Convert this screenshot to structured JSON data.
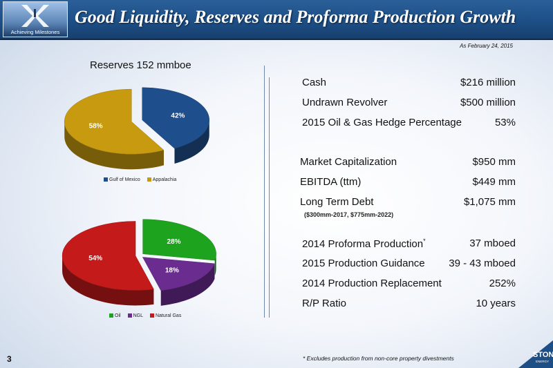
{
  "header": {
    "title": "Good Liquidity, Reserves and Proforma Production Growth",
    "logo_caption": "Achieving Milestones"
  },
  "as_of": "As February 24, 2015",
  "reserves_title": "Reserves  152 mmboe",
  "chart_data": [
    {
      "type": "pie",
      "labels": [
        "Gulf of Mexico",
        "Appalachia"
      ],
      "values": [
        42,
        58
      ],
      "value_labels": [
        "42%",
        "58%"
      ],
      "colors": [
        "#1f4e8c",
        "#c79a10"
      ],
      "legend": "bottom"
    },
    {
      "type": "pie",
      "labels": [
        "Oil",
        "NGL",
        "Natural Gas"
      ],
      "values": [
        28,
        18,
        54
      ],
      "value_labels": [
        "28%",
        "18%",
        "54%"
      ],
      "colors": [
        "#1ea31e",
        "#6a2c8f",
        "#c41a1a"
      ],
      "legend": "bottom"
    }
  ],
  "metrics": [
    {
      "label": "Cash",
      "value": "$216 million"
    },
    {
      "label": "Undrawn Revolver",
      "value": "$500 million"
    },
    {
      "label": "2015 Oil & Gas Hedge Percentage",
      "value": "53%"
    },
    {
      "label": "Market Capitalization",
      "value": "$950 mm"
    },
    {
      "label": "EBITDA (ttm)",
      "value": "$449 mm"
    },
    {
      "label": "Long Term Debt",
      "value": "$1,075 mm",
      "sub": "($300mm-2017, $775mm-2022)"
    },
    {
      "label": "2014 Proforma Production",
      "sup": "*",
      "value": "37 mboed"
    },
    {
      "label": "2015 Production Guidance",
      "value": "39 - 43 mboed"
    },
    {
      "label": "2014 Production Replacement",
      "value": "252%"
    },
    {
      "label": "R/P Ratio",
      "value": "10 years"
    }
  ],
  "footnote": "* Excludes production from non-core property divestments",
  "page_number": "3",
  "brand": {
    "logo_text": "STONE",
    "logo_subtext": "ENERGY",
    "accent": "#1d4f86"
  }
}
